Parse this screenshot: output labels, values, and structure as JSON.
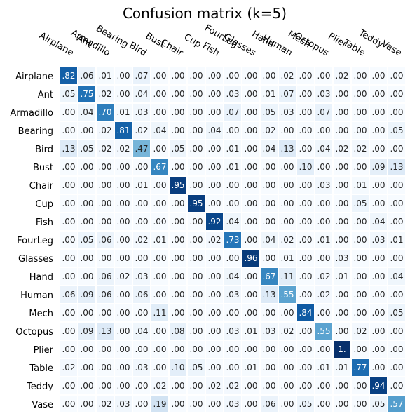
{
  "chart_data": {
    "type": "heatmap",
    "title": "Confusion matrix (k=5)",
    "row_labels": [
      "Airplane",
      "Ant",
      "Armadillo",
      "Bearing",
      "Bird",
      "Bust",
      "Chair",
      "Cup",
      "Fish",
      "FourLeg",
      "Glasses",
      "Hand",
      "Human",
      "Mech",
      "Octopus",
      "Plier",
      "Table",
      "Teddy",
      "Vase"
    ],
    "col_labels": [
      "Airplane",
      "Ant",
      "Armadillo",
      "Bearing",
      "Bird",
      "Bust",
      "Chair",
      "Cup",
      "Fish",
      "FourLeg",
      "Glasses",
      "Hand",
      "Human",
      "Mech",
      "Octopus",
      "Plier",
      "Table",
      "Teddy",
      "Vase"
    ],
    "values": [
      [
        0.82,
        0.06,
        0.01,
        0.0,
        0.07,
        0.0,
        0.0,
        0.0,
        0.0,
        0.0,
        0.0,
        0.0,
        0.02,
        0.0,
        0.0,
        0.02,
        0.0,
        0.0,
        0.0
      ],
      [
        0.05,
        0.75,
        0.02,
        0.0,
        0.04,
        0.0,
        0.0,
        0.0,
        0.0,
        0.03,
        0.0,
        0.01,
        0.07,
        0.0,
        0.03,
        0.0,
        0.0,
        0.0,
        0.0
      ],
      [
        0.0,
        0.04,
        0.7,
        0.01,
        0.03,
        0.0,
        0.0,
        0.0,
        0.0,
        0.07,
        0.0,
        0.05,
        0.03,
        0.0,
        0.07,
        0.0,
        0.0,
        0.0,
        0.0
      ],
      [
        0.0,
        0.0,
        0.02,
        0.81,
        0.02,
        0.04,
        0.0,
        0.0,
        0.04,
        0.0,
        0.0,
        0.02,
        0.0,
        0.0,
        0.0,
        0.0,
        0.0,
        0.0,
        0.05
      ],
      [
        0.13,
        0.05,
        0.02,
        0.02,
        0.47,
        0.0,
        0.05,
        0.0,
        0.0,
        0.01,
        0.0,
        0.04,
        0.13,
        0.0,
        0.04,
        0.02,
        0.02,
        0.0,
        0.0
      ],
      [
        0.0,
        0.0,
        0.0,
        0.0,
        0.0,
        0.67,
        0.0,
        0.0,
        0.0,
        0.01,
        0.0,
        0.0,
        0.0,
        0.1,
        0.0,
        0.0,
        0.0,
        0.09,
        0.13
      ],
      [
        0.0,
        0.0,
        0.0,
        0.0,
        0.01,
        0.0,
        0.95,
        0.0,
        0.0,
        0.0,
        0.0,
        0.0,
        0.0,
        0.0,
        0.03,
        0.0,
        0.01,
        0.0,
        0.0
      ],
      [
        0.0,
        0.0,
        0.0,
        0.0,
        0.0,
        0.0,
        0.0,
        0.95,
        0.0,
        0.0,
        0.0,
        0.0,
        0.0,
        0.0,
        0.0,
        0.0,
        0.05,
        0.0,
        0.0
      ],
      [
        0.0,
        0.0,
        0.0,
        0.0,
        0.0,
        0.0,
        0.0,
        0.0,
        0.92,
        0.04,
        0.0,
        0.0,
        0.0,
        0.0,
        0.0,
        0.0,
        0.0,
        0.04,
        0.0
      ],
      [
        0.0,
        0.05,
        0.06,
        0.0,
        0.02,
        0.01,
        0.0,
        0.0,
        0.02,
        0.73,
        0.0,
        0.04,
        0.02,
        0.0,
        0.01,
        0.0,
        0.0,
        0.03,
        0.01
      ],
      [
        0.0,
        0.0,
        0.0,
        0.0,
        0.0,
        0.0,
        0.0,
        0.0,
        0.0,
        0.0,
        0.96,
        0.0,
        0.01,
        0.0,
        0.0,
        0.03,
        0.0,
        0.0,
        0.0
      ],
      [
        0.0,
        0.0,
        0.06,
        0.02,
        0.03,
        0.0,
        0.0,
        0.0,
        0.0,
        0.04,
        0.0,
        0.67,
        0.11,
        0.0,
        0.02,
        0.01,
        0.0,
        0.0,
        0.04
      ],
      [
        0.06,
        0.09,
        0.06,
        0.0,
        0.06,
        0.0,
        0.0,
        0.0,
        0.0,
        0.03,
        0.0,
        0.13,
        0.55,
        0.0,
        0.02,
        0.0,
        0.0,
        0.0,
        0.0
      ],
      [
        0.0,
        0.0,
        0.0,
        0.0,
        0.0,
        0.11,
        0.0,
        0.0,
        0.0,
        0.0,
        0.0,
        0.0,
        0.0,
        0.84,
        0.0,
        0.0,
        0.0,
        0.0,
        0.05
      ],
      [
        0.0,
        0.09,
        0.13,
        0.0,
        0.04,
        0.0,
        0.08,
        0.0,
        0.0,
        0.03,
        0.01,
        0.03,
        0.02,
        0.0,
        0.55,
        0.0,
        0.02,
        0.0,
        0.0
      ],
      [
        0.0,
        0.0,
        0.0,
        0.0,
        0.0,
        0.0,
        0.0,
        0.0,
        0.0,
        0.0,
        0.0,
        0.0,
        0.0,
        0.0,
        0.0,
        1.0,
        0.0,
        0.0,
        0.0
      ],
      [
        0.02,
        0.0,
        0.0,
        0.0,
        0.03,
        0.0,
        0.1,
        0.05,
        0.0,
        0.0,
        0.01,
        0.0,
        0.0,
        0.0,
        0.01,
        0.01,
        0.77,
        0.0,
        0.0
      ],
      [
        0.0,
        0.0,
        0.0,
        0.0,
        0.0,
        0.02,
        0.0,
        0.0,
        0.02,
        0.02,
        0.0,
        0.0,
        0.0,
        0.0,
        0.0,
        0.0,
        0.0,
        0.94,
        0.0
      ],
      [
        0.0,
        0.0,
        0.02,
        0.03,
        0.0,
        0.19,
        0.0,
        0.0,
        0.0,
        0.03,
        0.0,
        0.06,
        0.0,
        0.05,
        0.0,
        0.0,
        0.0,
        0.05,
        0.57
      ]
    ],
    "value_range": [
      0,
      1
    ],
    "colormap": {
      "low": "#f7fbff",
      "high": "#08306b"
    },
    "grid": false
  }
}
